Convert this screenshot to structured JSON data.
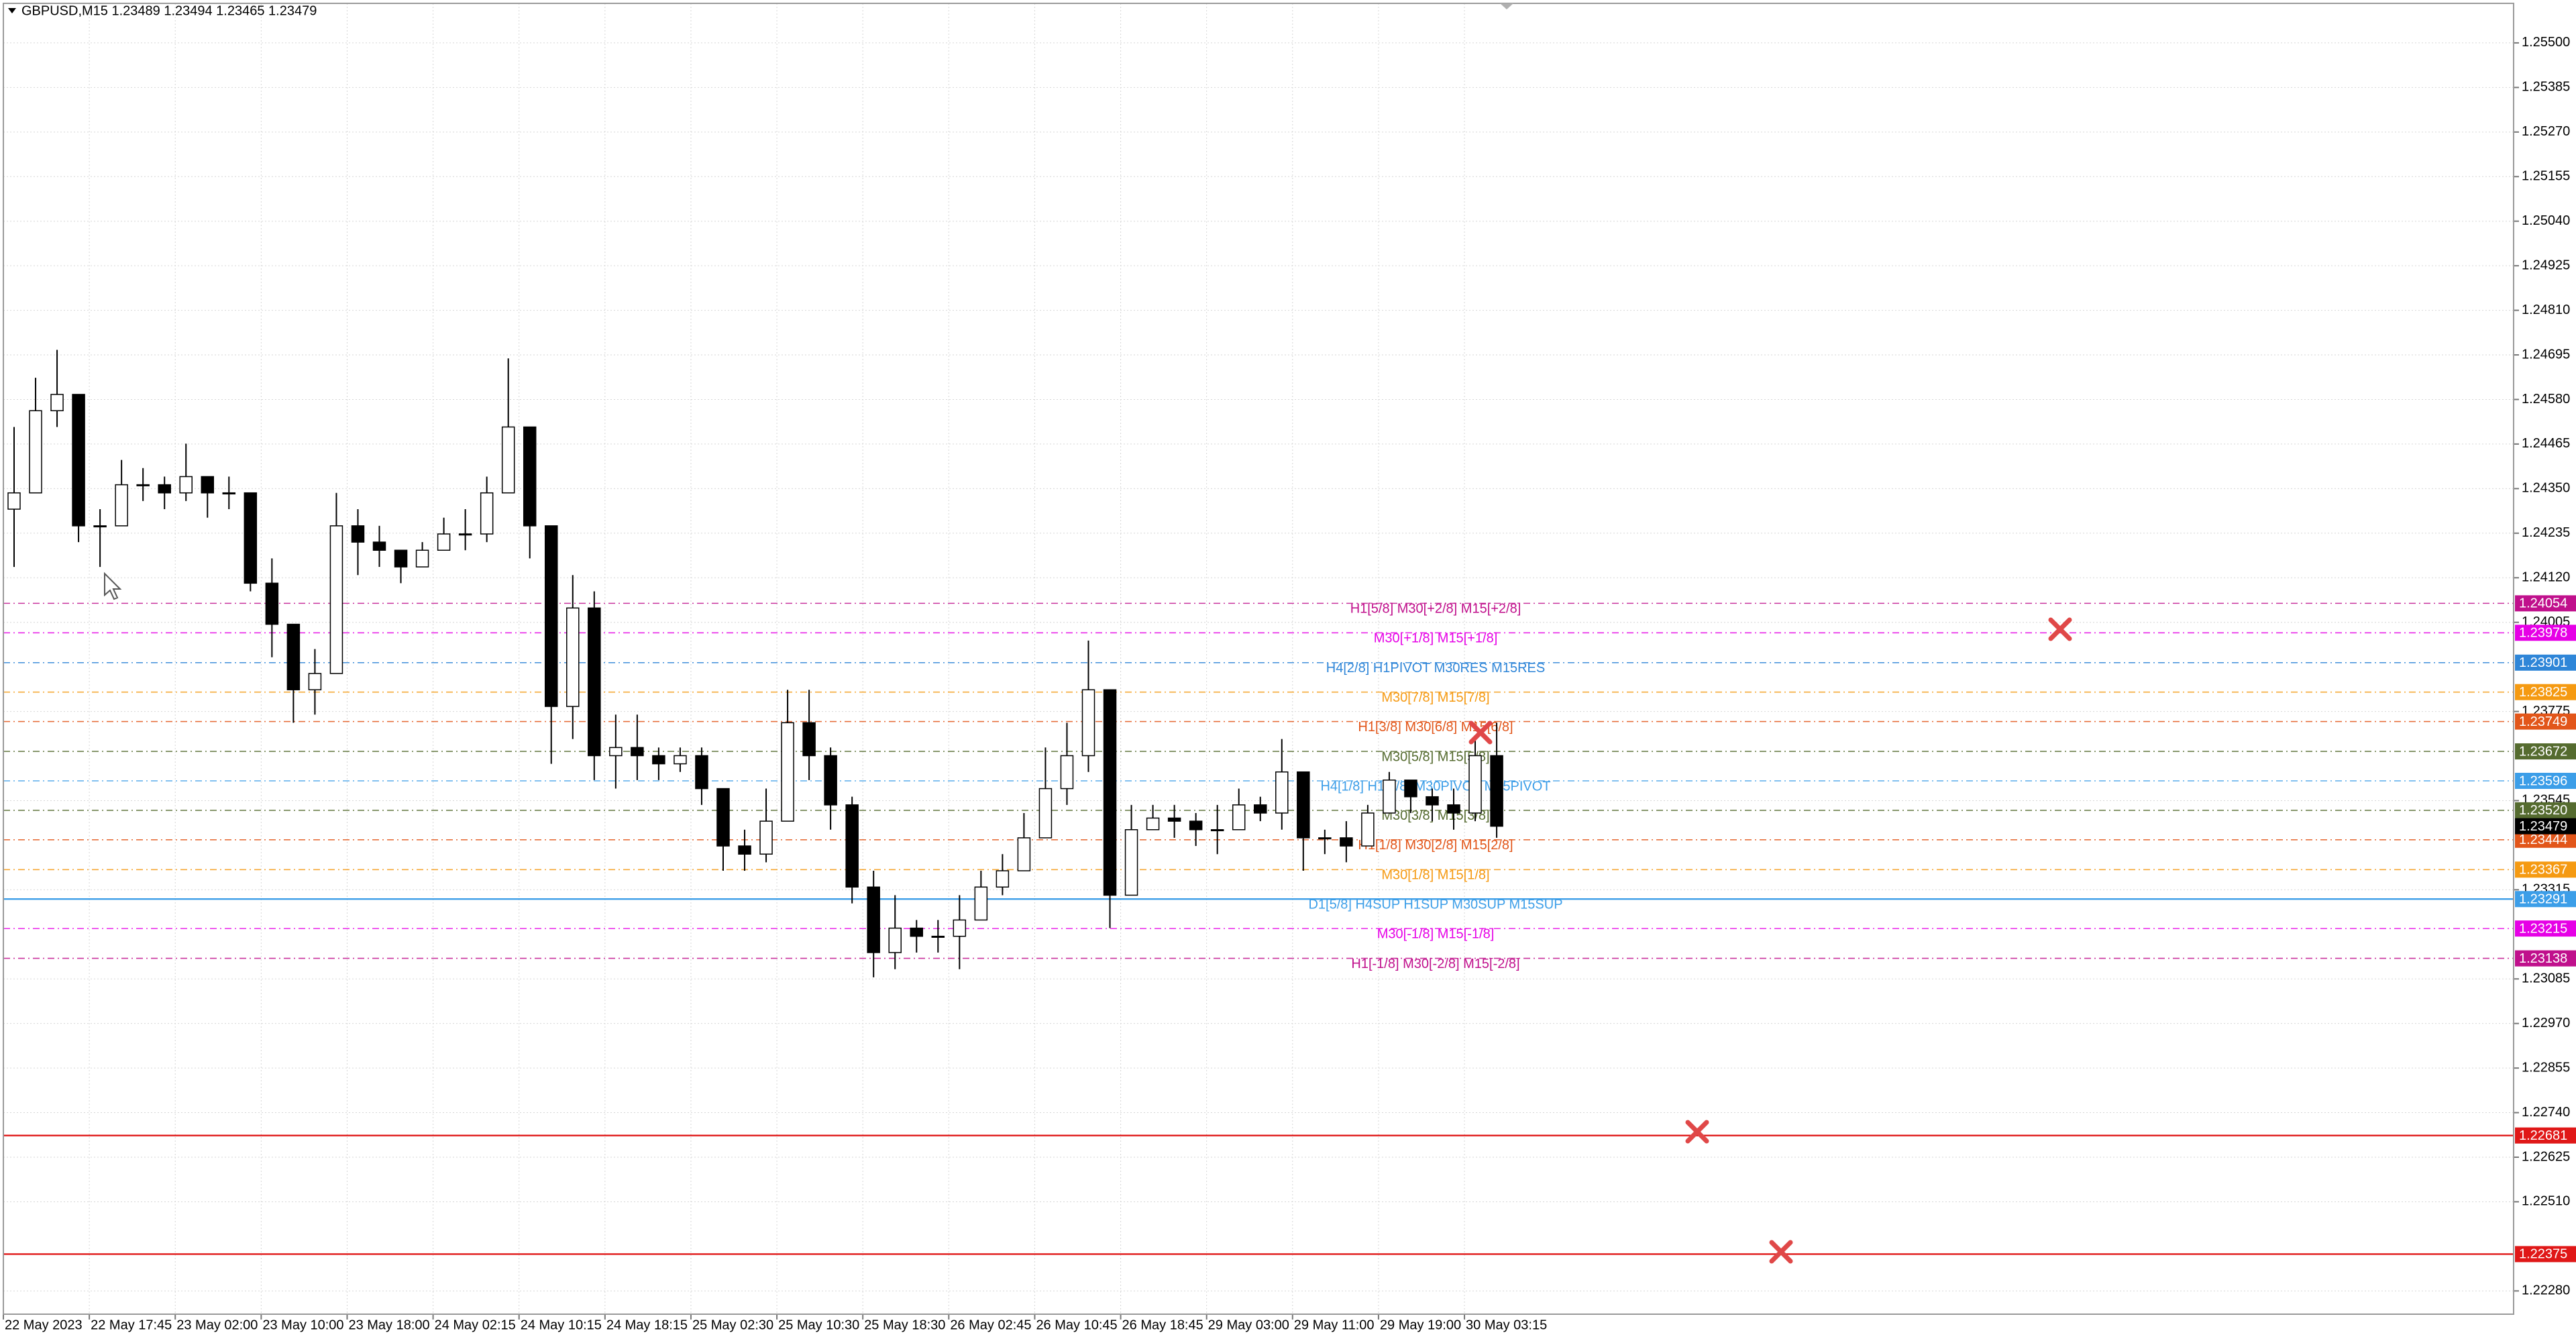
{
  "chart_data": {
    "type": "candlestick",
    "title": "GBPUSD,M15  1.23489 1.23494 1.23465 1.23479",
    "categories": [
      "22 May 2023",
      null,
      null,
      null,
      "22 May 17:45",
      null,
      null,
      null,
      "23 May 02:00",
      null,
      null,
      null,
      "23 May 10:00",
      null,
      null,
      null,
      "23 May 18:00",
      null,
      null,
      null,
      "24 May 02:15",
      null,
      null,
      null,
      "24 May 10:15",
      null,
      null,
      null,
      "24 May 18:15",
      null,
      null,
      null,
      "25 May 02:30",
      null,
      null,
      null,
      "25 May 10:30",
      null,
      null,
      null,
      "25 May 18:30",
      null,
      null,
      null,
      "26 May 02:45",
      null,
      null,
      null,
      "26 May 10:45",
      null,
      null,
      null,
      "26 May 18:45",
      null,
      null,
      null,
      "29 May 03:00",
      null,
      null,
      null,
      "29 May 11:00",
      null,
      null,
      null,
      "29 May 19:00",
      null,
      null,
      null,
      "30 May 03:15",
      null
    ],
    "open": [
      1.24297,
      1.24339,
      1.24551,
      1.24593,
      1.24254,
      1.24254,
      1.2436,
      1.2436,
      1.24339,
      1.24381,
      1.24339,
      1.24339,
      1.24106,
      1.24,
      1.23831,
      1.23873,
      1.24254,
      1.24212,
      1.24191,
      1.24148,
      1.24191,
      1.24233,
      1.24233,
      1.24339,
      1.24509,
      1.24254,
      1.23788,
      1.24042,
      1.23661,
      1.23682,
      1.23661,
      1.2364,
      1.23661,
      1.23576,
      1.23428,
      1.23407,
      1.23492,
      1.23746,
      1.23661,
      1.23534,
      1.23322,
      1.23153,
      1.23216,
      1.23195,
      1.23195,
      1.23237,
      1.23322,
      1.23364,
      1.23449,
      1.23576,
      1.23661,
      1.23831,
      1.23301,
      1.2347,
      1.235,
      1.23492,
      1.2347,
      1.2347,
      1.23534,
      1.23513,
      1.23619,
      1.23449,
      1.23449,
      1.23428,
      1.23513,
      1.23598,
      1.23555,
      1.23534,
      1.23513,
      1.23661
    ],
    "high": [
      1.24509,
      1.24636,
      1.24708,
      1.24593,
      1.24297,
      1.24424,
      1.24403,
      1.24381,
      1.24466,
      1.24381,
      1.24381,
      1.24339,
      1.2417,
      1.24,
      1.23936,
      1.24339,
      1.24297,
      1.24254,
      1.24191,
      1.24212,
      1.24275,
      1.24297,
      1.24381,
      1.24686,
      1.24509,
      1.24254,
      1.24127,
      1.24085,
      1.23767,
      1.23767,
      1.23682,
      1.23682,
      1.23682,
      1.23576,
      1.2347,
      1.23576,
      1.23831,
      1.23831,
      1.23682,
      1.23555,
      1.23364,
      1.23301,
      1.23237,
      1.23237,
      1.23301,
      1.23364,
      1.23407,
      1.23513,
      1.23682,
      1.23746,
      1.23958,
      1.23831,
      1.23534,
      1.23534,
      1.23534,
      1.23513,
      1.23534,
      1.23576,
      1.23555,
      1.23704,
      1.23619,
      1.2347,
      1.23492,
      1.23534,
      1.23619,
      1.23598,
      1.23576,
      1.23576,
      1.23704,
      1.23746
    ],
    "low": [
      1.24148,
      1.24339,
      1.24509,
      1.24212,
      1.24148,
      1.24254,
      1.24318,
      1.24297,
      1.24318,
      1.24275,
      1.24297,
      1.24085,
      1.23915,
      1.23746,
      1.23767,
      1.23873,
      1.24127,
      1.24148,
      1.24106,
      1.24148,
      1.24191,
      1.24191,
      1.24212,
      1.24339,
      1.2417,
      1.2364,
      1.23704,
      1.23598,
      1.23576,
      1.23598,
      1.23598,
      1.23619,
      1.23534,
      1.23364,
      1.23364,
      1.23386,
      1.23492,
      1.23598,
      1.2347,
      1.2328,
      1.23089,
      1.2311,
      1.23153,
      1.23153,
      1.2311,
      1.23237,
      1.23301,
      1.23364,
      1.23449,
      1.23534,
      1.23619,
      1.23216,
      1.23301,
      1.2347,
      1.23449,
      1.23428,
      1.23407,
      1.2347,
      1.23492,
      1.2347,
      1.23364,
      1.23407,
      1.23386,
      1.23428,
      1.23513,
      1.23513,
      1.23492,
      1.2347,
      1.23492,
      1.23449
    ],
    "close": [
      1.24339,
      1.24551,
      1.24593,
      1.24254,
      1.24254,
      1.2436,
      1.2436,
      1.24339,
      1.24381,
      1.24339,
      1.24339,
      1.24106,
      1.24,
      1.23831,
      1.23873,
      1.24254,
      1.24212,
      1.24191,
      1.24148,
      1.24191,
      1.24233,
      1.24233,
      1.24339,
      1.24509,
      1.24254,
      1.23788,
      1.24042,
      1.23661,
      1.23682,
      1.23661,
      1.2364,
      1.23661,
      1.23576,
      1.23428,
      1.23407,
      1.23492,
      1.23746,
      1.23661,
      1.23534,
      1.23322,
      1.23153,
      1.23216,
      1.23195,
      1.23195,
      1.23237,
      1.23322,
      1.23364,
      1.23449,
      1.23576,
      1.23661,
      1.23831,
      1.23301,
      1.2347,
      1.235,
      1.23492,
      1.2347,
      1.2347,
      1.23534,
      1.23513,
      1.23619,
      1.23449,
      1.23449,
      1.23428,
      1.23513,
      1.23598,
      1.23555,
      1.23534,
      1.23513,
      1.23661,
      1.23479
    ],
    "color": "#000000",
    "ylim": [
      1.2222,
      1.25602
    ],
    "yticks": [
      {
        "value": 1.2228,
        "label": "1.22280"
      },
      {
        "value": 1.2251,
        "label": "1.22510"
      },
      1.22625,
      {
        "value": 1.2274,
        "label": "1.22740"
      },
      1.22855,
      {
        "value": 1.2297,
        "label": "1.22970"
      },
      1.23085,
      1.23315,
      1.23545,
      1.23775,
      1.24005,
      {
        "value": 1.2412,
        "label": "1.24120"
      },
      1.24235,
      {
        "value": 1.2435,
        "label": "1.24350"
      },
      1.24465,
      {
        "value": 1.2458,
        "label": "1.24580"
      },
      1.24695,
      {
        "value": 1.2481,
        "label": "1.24810"
      },
      1.24925,
      {
        "value": 1.2504,
        "label": "1.25040"
      },
      1.25155,
      {
        "value": 1.2527,
        "label": "1.25270"
      },
      1.25385,
      {
        "value": 1.255,
        "label": "1.25500"
      }
    ],
    "grid": true,
    "levels": [
      {
        "value": 1.24054,
        "label": "H1[5/8] M30[+2/8] M15[+2/8]",
        "color": "#c0108c",
        "dashed": true
      },
      {
        "value": 1.23978,
        "label": "M30[+1/8] M15[+1/8]",
        "color": "#e600e6",
        "dashed": true
      },
      {
        "value": 1.23901,
        "label": "H4[2/8] H1PIVOT M30RES M15RES",
        "color": "#2f86d8",
        "dashed": true
      },
      {
        "value": 1.23825,
        "label": "M30[7/8] M15[7/8]",
        "color": "#f59a12",
        "dashed": true
      },
      {
        "value": 1.23749,
        "label": "H1[3/8] M30[6/8] M15[6/8]",
        "color": "#e2561a",
        "dashed": true
      },
      {
        "value": 1.23672,
        "label": "M30[5/8] M15[5/8]",
        "color": "#556b2f",
        "dashed": true
      },
      {
        "value": 1.23596,
        "label": "H4[1/8] H1[2/8] M30PIVOT M15PIVOT",
        "color": "#3c9ee8",
        "dashed": true
      },
      {
        "value": 1.2352,
        "value_label": "1.23520",
        "label": "M30[3/8] M15[3/8]",
        "color": "#556b2f",
        "dashed": true
      },
      {
        "value": 1.23444,
        "label": "H1[1/8] M30[2/8] M15[2/8]",
        "color": "#e2561a",
        "dashed": true
      },
      {
        "value": 1.23367,
        "label": "M30[1/8] M15[1/8]",
        "color": "#f59a12",
        "dashed": true
      },
      {
        "value": 1.23291,
        "label": "D1[5/8] H4SUP H1SUP M30SUP M15SUP",
        "color": "#3c9ee8",
        "dashed": false
      },
      {
        "value": 1.23215,
        "label": "M30[-1/8] M15[-1/8]",
        "color": "#e600e6",
        "dashed": true
      },
      {
        "value": 1.23138,
        "label": "H1[-1/8] M30[-2/8] M15[-2/8]",
        "color": "#c0108c",
        "dashed": true
      },
      {
        "value": 1.22681,
        "color": "#e01818",
        "dashed": false
      },
      {
        "value": 1.22375,
        "color": "#e01818",
        "dashed": false
      }
    ],
    "last_price": 1.23479
  }
}
